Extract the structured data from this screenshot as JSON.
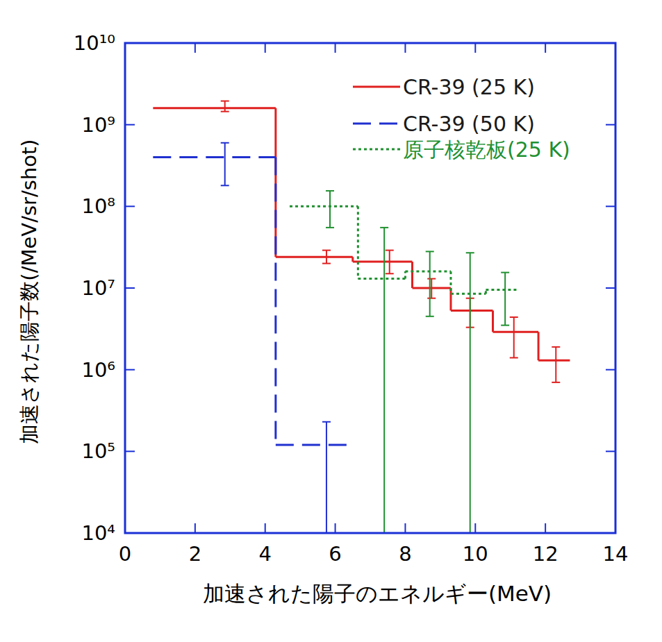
{
  "chart_data": {
    "type": "step",
    "x_label": "加速された陽子のエネルギー(MeV)",
    "y_label": "加速された陽子数(/MeV/sr/shot)",
    "log": "y",
    "legend": "upper right",
    "xlim": [
      0,
      14
    ],
    "xticks": [
      0,
      2,
      4,
      6,
      8,
      10,
      12,
      14
    ],
    "ylim": [
      10000,
      10000000000
    ],
    "yticks": [
      {
        "value": 10000,
        "label": "10⁴"
      },
      {
        "value": 100000,
        "label": "10⁵"
      },
      {
        "value": 1000000,
        "label": "10⁶"
      },
      {
        "value": 10000000,
        "label": "10⁷"
      },
      {
        "value": 100000000,
        "label": "10⁸"
      },
      {
        "value": 1000000000,
        "label": "10⁹"
      },
      {
        "value": 10000000000,
        "label": "10¹⁰"
      }
    ],
    "series": [
      {
        "name": "CR-39 (25 K)",
        "color": "#e02020",
        "line_style": "solid",
        "bins": [
          0.8,
          4.3,
          6.5,
          8.2,
          9.3,
          10.5,
          11.8,
          12.7
        ],
        "values": [
          1600000000,
          24000000,
          21000000,
          10000000,
          5300000,
          2900000,
          1300000
        ],
        "error_x": [
          2.85,
          5.75,
          7.55,
          8.75,
          9.85,
          11.1,
          12.3
        ],
        "error_low": [
          1450000000,
          20000000,
          15000000,
          7500000,
          3300000,
          1400000,
          700000
        ],
        "error_high": [
          1950000000,
          29000000,
          29000000,
          13000000,
          7500000,
          4400000,
          1900000
        ]
      },
      {
        "name": "CR-39 (50 K)",
        "color": "#2030d0",
        "line_style": "dashed",
        "bins": [
          0.8,
          4.3,
          6.5
        ],
        "values": [
          400000000,
          120000
        ],
        "error_x": [
          2.85,
          5.75
        ],
        "error_low": [
          180000000,
          1000
        ],
        "error_high": [
          600000000,
          230000
        ]
      },
      {
        "name": "原子核乾板(25 K)",
        "color": "#209030",
        "line_style": "dotted",
        "bins": [
          4.7,
          6.65,
          8.0,
          9.3,
          10.3,
          11.2
        ],
        "values": [
          100000000,
          13000000,
          16000000,
          8500000,
          9500000
        ],
        "error_x": [
          5.85,
          7.4,
          8.7,
          9.85,
          10.85
        ],
        "error_low": [
          55000000,
          1000,
          4500000,
          1000,
          3500000
        ],
        "error_high": [
          155000000,
          55000000,
          28000000,
          27000000,
          15500000
        ]
      }
    ]
  }
}
